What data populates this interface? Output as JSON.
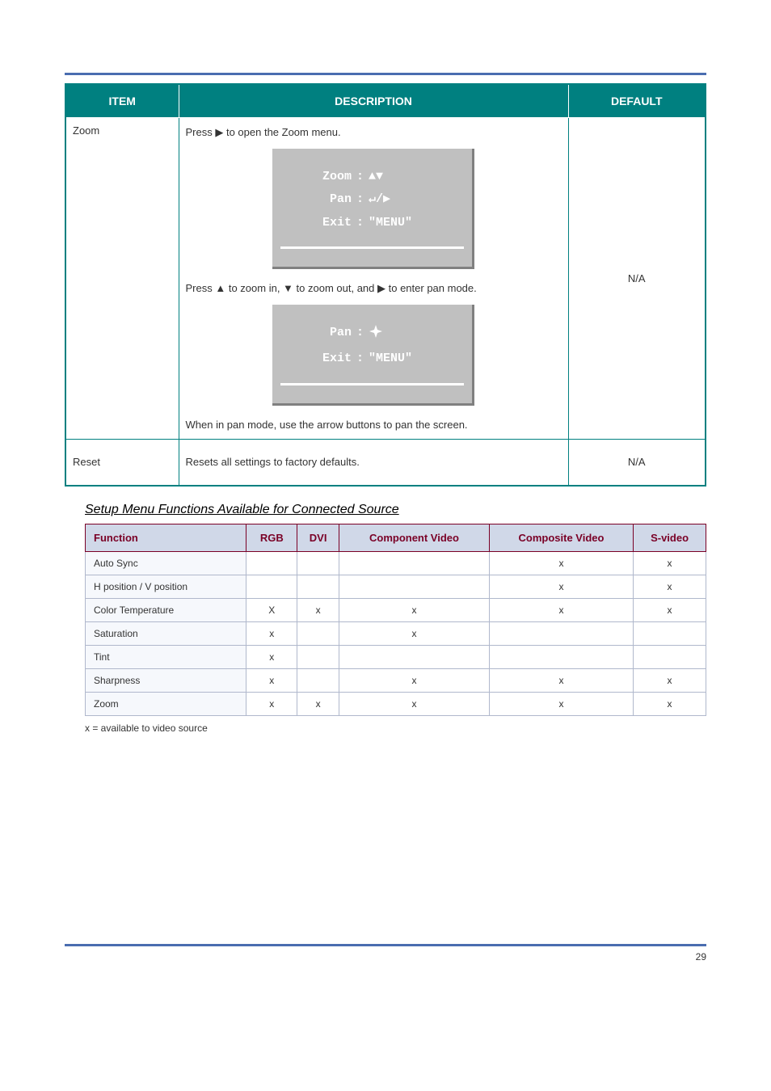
{
  "table1": {
    "headers": [
      "ITEM",
      "DESCRIPTION",
      "DEFAULT"
    ],
    "rows": [
      {
        "label": "Zoom",
        "desc_line1_pre": "Press ",
        "desc_line1_post": " to open the Zoom menu.",
        "osd1": {
          "rows": [
            {
              "label": "Zoom",
              "value_glyph": "▲▼"
            },
            {
              "label": "Pan",
              "value_glyph": "↵/▶"
            },
            {
              "label": "Exit",
              "value_text": "\"MENU\""
            }
          ]
        },
        "desc_line2_pre": "Press ",
        "desc_line2_mid": " to zoom in, ",
        "desc_line2_mid2": " to zoom out, and ",
        "desc_line2_post": " to enter pan mode.",
        "osd2": {
          "rows": [
            {
              "label": "Pan",
              "value_glyph": "⬥"
            },
            {
              "label": "Exit",
              "value_text": "\"MENU\""
            }
          ]
        },
        "desc_line3": "When in pan mode, use the arrow buttons to pan the screen.",
        "default": "N/A"
      },
      {
        "label": "Reset",
        "desc": "Resets all settings to factory defaults.",
        "default": "N/A"
      }
    ]
  },
  "section_title": "Setup Menu Functions Available for Connected Source",
  "table2": {
    "headers": [
      "Function",
      "RGB",
      "DVI",
      "Component Video",
      "Composite Video",
      "S-video"
    ],
    "rows": [
      [
        "Auto Sync",
        "",
        "",
        "",
        "x",
        "x"
      ],
      [
        "H position / V position",
        "",
        "",
        "",
        "x",
        "x"
      ],
      [
        "Color Temperature",
        "X",
        "x",
        "x",
        "x",
        "x"
      ],
      [
        "Saturation",
        "x",
        "",
        "x",
        "",
        ""
      ],
      [
        "Tint",
        "x",
        "",
        "",
        "",
        ""
      ],
      [
        "Sharpness",
        "x",
        "",
        "x",
        "x",
        "x"
      ],
      [
        "Zoom",
        "x",
        "x",
        "x",
        "x",
        "x"
      ]
    ],
    "note": "x = available to video source"
  },
  "footer": {
    "page": "29"
  },
  "glyphs": {
    "right": "▶",
    "up": "▲",
    "down": "▼",
    "pan_diamond_svg": true
  }
}
